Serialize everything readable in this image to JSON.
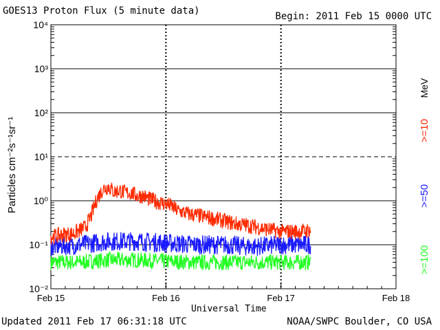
{
  "header": {
    "title": "GOES13 Proton Flux (5 minute data)",
    "begin": "Begin: 2011 Feb 15 0000 UTC"
  },
  "footer": {
    "updated": "Updated 2011 Feb 17 06:31:18 UTC",
    "credit": "NOAA/SWPC Boulder, CO USA"
  },
  "colors": {
    "gte10": "#ff2a00",
    "gte50": "#1a1aff",
    "gte100": "#22ff22",
    "grid": "#000000",
    "background": "#ffffff"
  },
  "chart_data": {
    "type": "line",
    "xlabel": "Universal Time",
    "ylabel": "Particles cm⁻²s⁻¹sr⁻¹",
    "yscale": "log",
    "ylim": [
      0.01,
      10000
    ],
    "xlim": [
      "Feb 15",
      "Feb 18"
    ],
    "x_ticks": [
      "Feb 15",
      "Feb 16",
      "Feb 17",
      "Feb 18"
    ],
    "y_ticks": [
      "10⁻²",
      "10⁻¹",
      "10⁰",
      "10¹",
      "10²",
      "10³",
      "10⁴"
    ],
    "y_tick_values": [
      0.01,
      0.1,
      1,
      10,
      100,
      1000,
      10000
    ],
    "unit_label": "MeV",
    "series": [
      {
        "name": ">=10",
        "color": "#ff2a00",
        "x_days": [
          0.0,
          0.1,
          0.2,
          0.3,
          0.35,
          0.4,
          0.45,
          0.5,
          0.55,
          0.6,
          0.65,
          0.7,
          0.75,
          0.8,
          0.85,
          0.9,
          0.95,
          1.0,
          1.05,
          1.1,
          1.15,
          1.2,
          1.3,
          1.4,
          1.5,
          1.6,
          1.7,
          1.8,
          1.9,
          2.0,
          2.1,
          2.2,
          2.26
        ],
        "values": [
          0.15,
          0.17,
          0.18,
          0.25,
          0.45,
          1.1,
          1.8,
          2.1,
          1.6,
          1.7,
          1.5,
          1.5,
          1.3,
          1.3,
          1.1,
          1.0,
          0.9,
          0.85,
          0.75,
          0.6,
          0.55,
          0.5,
          0.45,
          0.4,
          0.35,
          0.3,
          0.28,
          0.25,
          0.22,
          0.2,
          0.2,
          0.2,
          0.22
        ]
      },
      {
        "name": ">=50",
        "color": "#1a1aff",
        "x_days": [
          0.0,
          0.25,
          0.5,
          0.75,
          1.0,
          1.25,
          1.5,
          1.75,
          2.0,
          2.26
        ],
        "values": [
          0.09,
          0.1,
          0.12,
          0.12,
          0.11,
          0.1,
          0.1,
          0.09,
          0.1,
          0.1
        ]
      },
      {
        "name": ">=100",
        "color": "#22ff22",
        "x_days": [
          0.0,
          0.25,
          0.5,
          0.75,
          1.0,
          1.25,
          1.5,
          1.75,
          2.0,
          2.26
        ],
        "values": [
          0.04,
          0.04,
          0.045,
          0.045,
          0.042,
          0.04,
          0.04,
          0.04,
          0.04,
          0.04
        ]
      }
    ],
    "grid": true,
    "legend_placement": "right-vertical"
  }
}
